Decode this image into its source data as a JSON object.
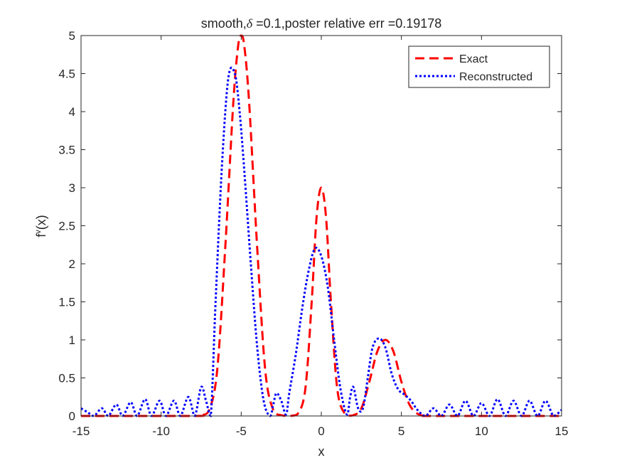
{
  "chart_data": {
    "type": "line",
    "title": {
      "pre": "smooth,",
      "symbol": "δ",
      "post": " =0.1,poster relative err =0.19178"
    },
    "xlabel": "x",
    "ylabel": {
      "base": "f",
      "superscript": "v",
      "suffix": "(x)"
    },
    "xlim": [
      -15,
      15
    ],
    "ylim": [
      0,
      5
    ],
    "xticks": [
      -15,
      -10,
      -5,
      0,
      5,
      10,
      15
    ],
    "xtick_labels": [
      "-15",
      "-10",
      "-5",
      "0",
      "5",
      "10",
      "15"
    ],
    "yticks": [
      0,
      0.5,
      1,
      1.5,
      2,
      2.5,
      3,
      3.5,
      4,
      4.5,
      5
    ],
    "ytick_labels": [
      "0",
      "0.5",
      "1",
      "1.5",
      "2",
      "2.5",
      "3",
      "3.5",
      "4",
      "4.5",
      "5"
    ],
    "grid": false,
    "legend_position": "top-right",
    "series": [
      {
        "name": "Exact",
        "color": "#ff0000",
        "style": "dashed",
        "x": [
          -15,
          -8,
          -7.5,
          -7,
          -6.5,
          -6,
          -5.5,
          -5.2,
          -5,
          -4.8,
          -4.5,
          -4,
          -3.5,
          -3,
          -2.5,
          -2,
          -1.5,
          -1,
          -0.6,
          -0.3,
          0,
          0.3,
          0.6,
          1,
          1.5,
          2,
          2.5,
          3,
          3.5,
          4,
          4.5,
          5,
          5.5,
          6,
          6.5,
          7,
          15
        ],
        "y": [
          0,
          0,
          0.01,
          0.08,
          0.6,
          2.2,
          4.1,
          4.85,
          5.0,
          4.85,
          4.1,
          2.2,
          0.6,
          0.08,
          0.01,
          0,
          0.02,
          0.35,
          1.5,
          2.6,
          3.0,
          2.6,
          1.5,
          0.35,
          0.02,
          0.01,
          0.1,
          0.45,
          0.85,
          1.0,
          0.85,
          0.45,
          0.15,
          0.03,
          0,
          0,
          0
        ]
      },
      {
        "name": "Reconstructed",
        "color": "#0000ff",
        "style": "dotted",
        "x": [
          -15,
          -14.6,
          -14.2,
          -13.7,
          -13.3,
          -12.8,
          -12.4,
          -11.9,
          -11.5,
          -11.0,
          -10.6,
          -10.1,
          -9.7,
          -9.2,
          -8.8,
          -8.3,
          -7.9,
          -7.5,
          -7.2,
          -6.9,
          -6.6,
          -6.2,
          -5.8,
          -5.4,
          -5.1,
          -4.8,
          -4.4,
          -4.0,
          -3.6,
          -3.2,
          -3.0,
          -2.8,
          -2.5,
          -2.2,
          -2.0,
          -1.6,
          -1.2,
          -0.8,
          -0.4,
          0,
          0.4,
          0.8,
          1.2,
          1.6,
          1.8,
          2.0,
          2.3,
          2.6,
          2.9,
          3.2,
          3.6,
          4.0,
          4.4,
          4.8,
          5.2,
          5.6,
          6.0,
          6.5,
          7.0,
          7.5,
          8.0,
          8.5,
          9.0,
          9.5,
          10.0,
          10.5,
          11.0,
          11.5,
          12.0,
          12.5,
          13.0,
          13.5,
          14.0,
          14.5,
          15
        ],
        "y": [
          0.1,
          0.05,
          0,
          0.1,
          0,
          0.15,
          0,
          0.18,
          0,
          0.22,
          0,
          0.2,
          0,
          0.2,
          0,
          0.25,
          0,
          0.38,
          0.2,
          0,
          1.5,
          3.3,
          4.45,
          4.5,
          4.0,
          3.2,
          2.0,
          0.9,
          0.2,
          0,
          0.15,
          0.3,
          0.2,
          0.02,
          0.3,
          0.8,
          1.4,
          1.9,
          2.2,
          2.1,
          1.7,
          1.0,
          0.35,
          0.02,
          0.25,
          0.38,
          0.1,
          0.1,
          0.5,
          0.9,
          1.02,
          0.9,
          0.55,
          0.35,
          0.28,
          0.2,
          0.08,
          0,
          0.1,
          0,
          0.15,
          0,
          0.2,
          0,
          0.17,
          0,
          0.22,
          0,
          0.2,
          0,
          0.2,
          0,
          0.2,
          0,
          0.08
        ]
      }
    ]
  }
}
